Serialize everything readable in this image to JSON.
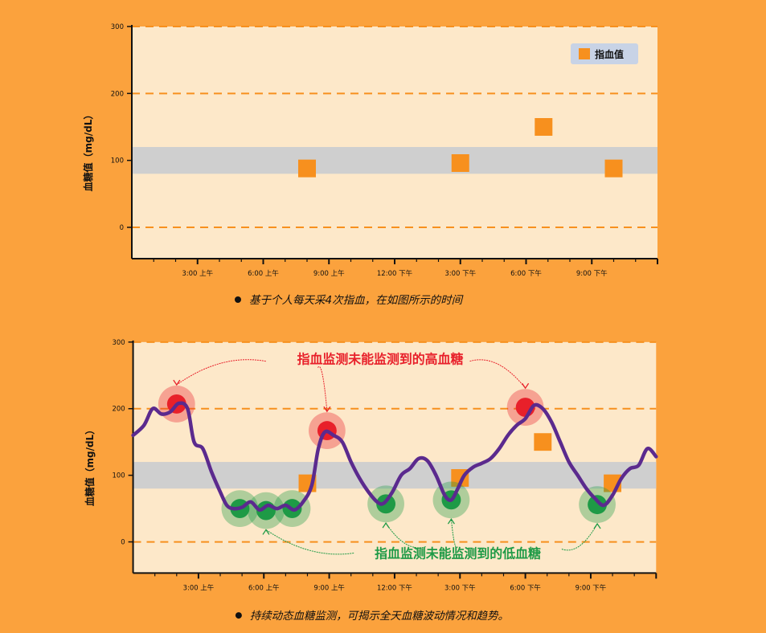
{
  "chart_data": [
    {
      "type": "scatter",
      "ylabel": "血糖值（mg/dL）",
      "ylim": [
        0,
        300
      ],
      "yticks": [
        0,
        100,
        200,
        300
      ],
      "xticks": [
        "3:00 上午",
        "6:00 上午",
        "9:00 上午",
        "12:00 下午",
        "3:00 下午",
        "6:00 下午",
        "9:00 下午"
      ],
      "xtick_hours": [
        3,
        6,
        9,
        12,
        15,
        18,
        21
      ],
      "xlim_hours": [
        0,
        24
      ],
      "gridlines_dashed": [
        0,
        200,
        300
      ],
      "target_band": [
        80,
        120
      ],
      "series": [
        {
          "name": "指血值",
          "color": "#F7901E",
          "marker": "square",
          "x_hours": [
            8.0,
            15.0,
            18.8,
            22.0
          ],
          "y": [
            88,
            96,
            150,
            88
          ]
        }
      ],
      "legend_position": "top-right",
      "caption": "基于个人每天采4次指血，在如图所示的时间"
    },
    {
      "type": "line",
      "ylabel": "血糖值（mg/dL）",
      "ylim": [
        0,
        300
      ],
      "yticks": [
        0,
        100,
        200,
        300
      ],
      "xticks": [
        "3:00 上午",
        "6:00 上午",
        "9:00 上午",
        "12:00 下午",
        "3:00 下午",
        "6:00 下午",
        "9:00 下午"
      ],
      "xtick_hours": [
        3,
        6,
        9,
        12,
        15,
        18,
        21
      ],
      "xlim_hours": [
        0,
        24
      ],
      "gridlines_dashed": [
        0,
        200,
        300
      ],
      "target_band": [
        80,
        120
      ],
      "series": [
        {
          "name": "",
          "color": "#5B2A8E",
          "x_hours": [
            0.0,
            0.5,
            0.9,
            1.3,
            1.7,
            2.1,
            2.5,
            2.8,
            3.2,
            3.6,
            4.0,
            4.3,
            4.6,
            5.0,
            5.4,
            5.8,
            6.2,
            6.6,
            7.0,
            7.4,
            7.8,
            8.2,
            8.5,
            8.8,
            9.2,
            9.6,
            10.0,
            10.4,
            10.8,
            11.2,
            11.5,
            11.9,
            12.3,
            12.7,
            13.1,
            13.5,
            13.9,
            14.3,
            14.6,
            14.9,
            15.2,
            15.6,
            16.0,
            16.4,
            16.8,
            17.2,
            17.6,
            18.0,
            18.4,
            18.8,
            19.2,
            19.6,
            20.0,
            20.4,
            20.8,
            21.2,
            21.6,
            22.0,
            22.4,
            22.8,
            23.2,
            23.6,
            24.0
          ],
          "y": [
            160,
            175,
            200,
            192,
            195,
            208,
            200,
            150,
            140,
            105,
            75,
            55,
            50,
            52,
            60,
            48,
            55,
            50,
            55,
            48,
            60,
            85,
            140,
            165,
            160,
            150,
            120,
            95,
            75,
            60,
            58,
            75,
            100,
            110,
            125,
            122,
            100,
            70,
            63,
            80,
            100,
            112,
            118,
            125,
            140,
            160,
            175,
            185,
            205,
            200,
            180,
            150,
            120,
            100,
            80,
            65,
            55,
            70,
            95,
            110,
            115,
            140,
            128
          ]
        }
      ],
      "fingerstick": {
        "name": "指血值",
        "color": "#F7901E",
        "x_hours": [
          8.0,
          15.0,
          18.8,
          22.0
        ],
        "y": [
          88,
          96,
          150,
          88
        ]
      },
      "highs": {
        "x_hours": [
          2.0,
          8.9,
          18.0
        ],
        "y": [
          207,
          167,
          202
        ]
      },
      "lows": {
        "x_hours": [
          4.9,
          6.1,
          7.3,
          11.6,
          14.6,
          21.3
        ],
        "y": [
          50,
          47,
          50,
          57,
          63,
          56
        ]
      },
      "annotations": {
        "highs_label": "指血监测未能监测到的高血糖",
        "lows_label": "指血监测未能监测到的低血糖"
      },
      "caption": "持续动态血糖监测，可揭示全天血糖波动情况和趋势。"
    }
  ],
  "colors": {
    "page_bg": "#FBA23D",
    "plot_bg": "#FDE8C9",
    "band": "#CFCFCF",
    "grid": "#F7901E",
    "line": "#5B2A8E",
    "high_fill": "#E8202A",
    "low_fill": "#1E9A46",
    "legend_bg": "#C8D3E6"
  }
}
